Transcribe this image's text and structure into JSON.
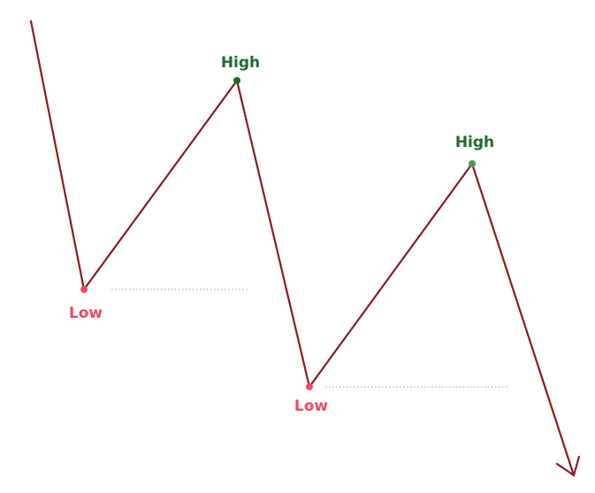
{
  "colors": {
    "price_line": "#8B1A24",
    "high_dark": "#1E6B2C",
    "high_light": "#4E9A4E",
    "low": "#EE4B5E",
    "level_line": "#999999",
    "background": "#FFFFFF"
  },
  "labels": {
    "high_1": "High",
    "high_2": "High",
    "low_1": "Low",
    "low_2": "Low"
  }
}
